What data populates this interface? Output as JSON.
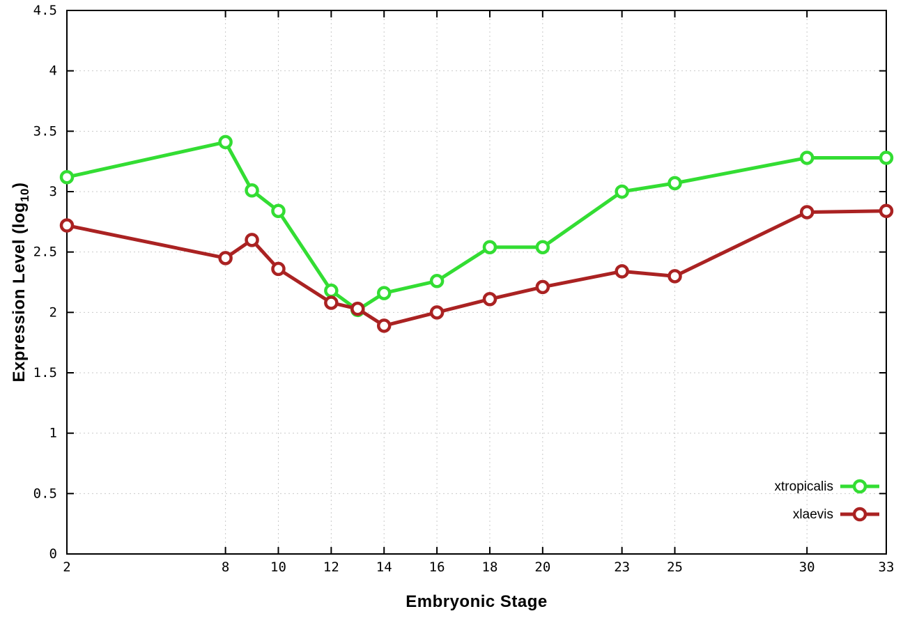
{
  "chart_data": {
    "type": "line",
    "title": "",
    "xlabel": "Embryonic Stage",
    "ylabel": "Expression Level (log10)",
    "ylabel_parts": {
      "prefix": "Expression Level (log",
      "sub": "10",
      "suffix": ")"
    },
    "xlim": [
      2,
      33
    ],
    "ylim": [
      0,
      4.5
    ],
    "xticks": [
      2,
      8,
      10,
      12,
      14,
      16,
      18,
      20,
      23,
      25,
      30,
      33
    ],
    "yticks": [
      "0",
      "0.5",
      "1",
      "1.5",
      "2",
      "2.5",
      "3",
      "3.5",
      "4",
      "4.5"
    ],
    "grid": true,
    "legend_position": "bottom-right-inside",
    "x": [
      2,
      8,
      9,
      10,
      12,
      13,
      14,
      16,
      18,
      20,
      23,
      25,
      30,
      33
    ],
    "series": [
      {
        "name": "xtropicalis",
        "color": "#33dd33",
        "values": [
          3.12,
          3.41,
          3.01,
          2.84,
          2.18,
          2.02,
          2.16,
          2.26,
          2.54,
          2.54,
          3.0,
          3.07,
          3.28,
          3.28
        ]
      },
      {
        "name": "xlaevis",
        "color": "#aa2222",
        "values": [
          2.72,
          2.45,
          2.6,
          2.36,
          2.08,
          2.03,
          1.89,
          2.0,
          2.11,
          2.21,
          2.34,
          2.3,
          2.83,
          2.84
        ]
      }
    ],
    "style": {
      "grid_color": "#c9c9c9",
      "axis_color": "#000000",
      "background": "#ffffff",
      "line_width": 5,
      "marker_radius": 8,
      "marker_fill": "#ffffff"
    }
  }
}
